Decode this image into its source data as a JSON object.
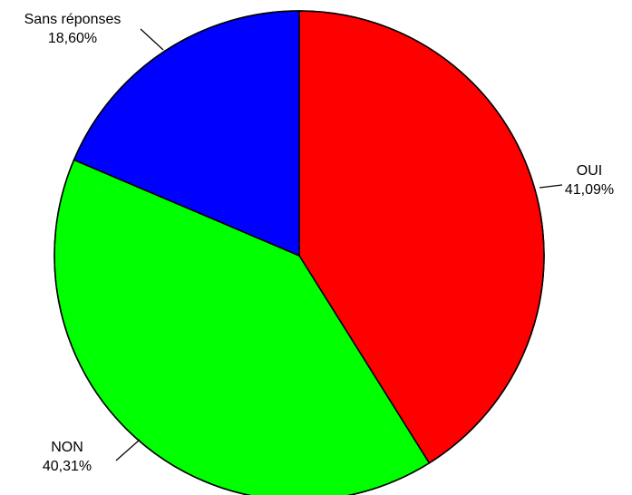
{
  "chart_data": {
    "type": "pie",
    "slices": [
      {
        "name": "OUI",
        "label": "OUI",
        "value_label": "41,09%",
        "value": 41.09,
        "color": "#ff0000"
      },
      {
        "name": "NON",
        "label": "NON",
        "value_label": "40,31%",
        "value": 40.31,
        "color": "#00ff00"
      },
      {
        "name": "Sans réponses",
        "label": "Sans réponses",
        "value_label": "18,60%",
        "value": 18.6,
        "color": "#0000ff"
      }
    ],
    "start_angle": "12 o'clock",
    "direction": "clockwise",
    "legend": "none",
    "labels": "outside, with leader lines"
  }
}
